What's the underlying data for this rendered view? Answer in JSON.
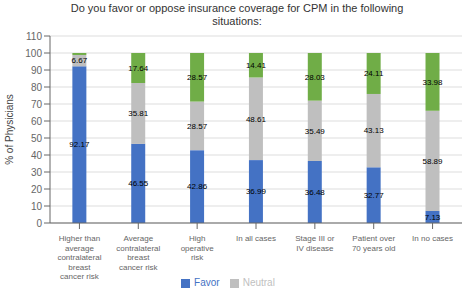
{
  "chart_data": {
    "type": "bar",
    "stacked": true,
    "title": "Do you favor or oppose insurance coverage for CPM in the following\nsituations:",
    "categories": [
      "Higher than\naverage\ncontralateral\nbreast\ncancer risk",
      "Average\ncontralateral\nbreast\ncancer risk",
      "High\noperative\nrisk",
      "In all cases",
      "Stage III or\nIV disease",
      "Patient over\n70 years old",
      "In no cases"
    ],
    "series": [
      {
        "name": "Favor",
        "color": "#4472c4",
        "values": [
          92.17,
          46.55,
          42.86,
          36.99,
          36.48,
          32.77,
          7.13
        ]
      },
      {
        "name": "Neutral",
        "color": "#bfbfbf",
        "values": [
          6.67,
          35.81,
          28.57,
          48.61,
          35.49,
          43.13,
          58.89
        ]
      },
      {
        "color": "#70ad47",
        "values": [
          1.16,
          17.64,
          28.57,
          14.41,
          28.03,
          24.11,
          33.98
        ],
        "value_labels": [
          null,
          "17.64",
          "28.57",
          "14.41",
          "28.03",
          "24.11",
          "33.98"
        ]
      }
    ],
    "ylabel": "% of Physicians",
    "ylim": [
      0,
      110
    ],
    "yticks": [
      0,
      10,
      20,
      30,
      40,
      50,
      60,
      70,
      80,
      90,
      100,
      110
    ],
    "grid": true,
    "legend": "bottom",
    "data_labels": true
  }
}
